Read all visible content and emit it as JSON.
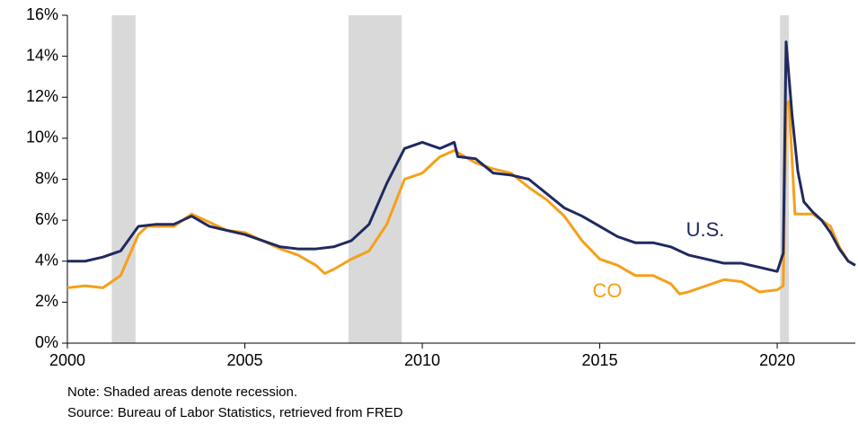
{
  "chart_data": {
    "type": "line",
    "xlim": [
      2000,
      2022.2
    ],
    "xticks": [
      2000,
      2005,
      2010,
      2015,
      2020
    ],
    "ylim": [
      0,
      16
    ],
    "yticks": [
      {
        "value": 0,
        "label": "0%"
      },
      {
        "value": 2,
        "label": "2%"
      },
      {
        "value": 4,
        "label": "4%"
      },
      {
        "value": 6,
        "label": "6%"
      },
      {
        "value": 8,
        "label": "8%"
      },
      {
        "value": 10,
        "label": "10%"
      },
      {
        "value": 12,
        "label": "12%"
      },
      {
        "value": 14,
        "label": "14%"
      },
      {
        "value": 16,
        "label": "16%"
      }
    ],
    "recessions": [
      [
        2001.25,
        2001.92
      ],
      [
        2007.92,
        2009.42
      ],
      [
        2020.08,
        2020.33
      ]
    ],
    "recession_color": "#d9d9d9",
    "series": [
      {
        "name": "U.S.",
        "color": "#1f2a60",
        "x": [
          2000,
          2000.5,
          2001,
          2001.5,
          2002,
          2002.5,
          2003,
          2003.5,
          2004,
          2004.5,
          2005,
          2005.5,
          2006,
          2006.5,
          2007,
          2007.5,
          2008,
          2008.5,
          2009,
          2009.5,
          2010,
          2010.5,
          2010.9,
          2011,
          2011.5,
          2012,
          2012.5,
          2013,
          2013.5,
          2014,
          2014.5,
          2015,
          2015.5,
          2016,
          2016.5,
          2017,
          2017.5,
          2018,
          2018.5,
          2019,
          2019.5,
          2020,
          2020.17,
          2020.25,
          2020.42,
          2020.58,
          2020.75,
          2021,
          2021.25,
          2021.5,
          2021.75,
          2022,
          2022.2
        ],
        "values": [
          4.0,
          4.0,
          4.2,
          4.5,
          5.7,
          5.8,
          5.8,
          6.2,
          5.7,
          5.5,
          5.3,
          5.0,
          4.7,
          4.6,
          4.6,
          4.7,
          5.0,
          5.8,
          7.8,
          9.5,
          9.8,
          9.5,
          9.8,
          9.1,
          9.0,
          8.3,
          8.2,
          8.0,
          7.3,
          6.6,
          6.2,
          5.7,
          5.2,
          4.9,
          4.9,
          4.7,
          4.3,
          4.1,
          3.9,
          3.9,
          3.7,
          3.5,
          4.4,
          14.7,
          11.1,
          8.4,
          6.9,
          6.4,
          6.0,
          5.4,
          4.6,
          4.0,
          3.8
        ]
      },
      {
        "name": "CO",
        "color": "#f5a01a",
        "x": [
          2000,
          2000.5,
          2001,
          2001.5,
          2002,
          2002.25,
          2002.5,
          2003,
          2003.5,
          2004,
          2004.5,
          2005,
          2005.5,
          2006,
          2006.5,
          2007,
          2007.25,
          2007.5,
          2008,
          2008.5,
          2009,
          2009.5,
          2010,
          2010.5,
          2010.9,
          2011.5,
          2012,
          2012.5,
          2013,
          2013.5,
          2014,
          2014.5,
          2015,
          2015.5,
          2016,
          2016.5,
          2017,
          2017.25,
          2017.5,
          2018,
          2018.5,
          2019,
          2019.5,
          2020,
          2020.17,
          2020.25,
          2020.33,
          2020.5,
          2020.75,
          2021,
          2021.25,
          2021.5,
          2021.75,
          2022,
          2022.2
        ],
        "values": [
          2.7,
          2.8,
          2.7,
          3.3,
          5.3,
          5.7,
          5.7,
          5.7,
          6.3,
          5.9,
          5.5,
          5.4,
          5.0,
          4.6,
          4.3,
          3.8,
          3.4,
          3.6,
          4.1,
          4.5,
          5.8,
          8.0,
          8.3,
          9.1,
          9.4,
          8.8,
          8.5,
          8.3,
          7.6,
          7.0,
          6.2,
          5.0,
          4.1,
          3.8,
          3.3,
          3.3,
          2.9,
          2.4,
          2.5,
          2.8,
          3.1,
          3.0,
          2.5,
          2.6,
          2.8,
          11.6,
          11.8,
          6.3,
          6.3,
          6.3,
          6.0,
          5.7,
          4.7,
          4.0,
          3.8
        ]
      }
    ],
    "annotations": [
      "U.S.",
      "CO"
    ],
    "notes": [
      "Note: Shaded areas denote recession.",
      "Source: Bureau of Labor Statistics, retrieved from FRED"
    ]
  }
}
